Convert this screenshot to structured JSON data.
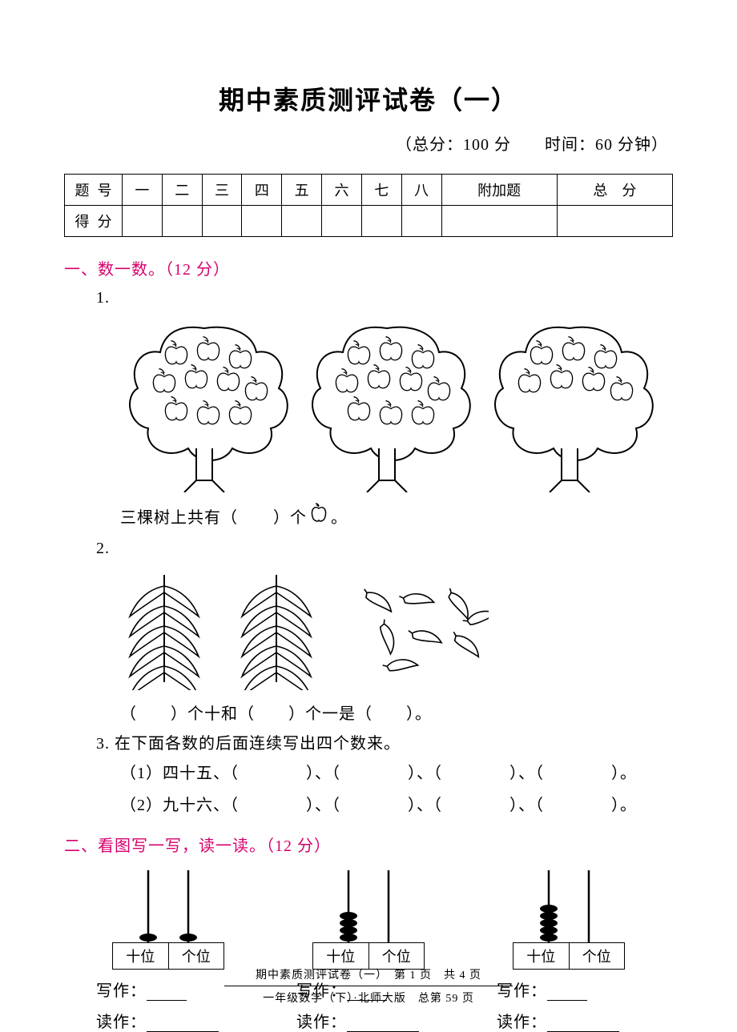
{
  "title": "期中素质测评试卷（一）",
  "subtitle_prefix": "（总分：",
  "total_score": "100",
  "score_unit": " 分",
  "time_label": "时间：",
  "time_value": "60",
  "time_unit": " 分钟）",
  "score_table": {
    "row1_label": "题号",
    "row2_label": "得分",
    "cols": [
      "一",
      "二",
      "三",
      "四",
      "五",
      "六",
      "七",
      "八",
      "附加题",
      "总　分"
    ]
  },
  "section1": {
    "heading": "一、数一数。（12 分）",
    "q1_num": "1.",
    "q1_text_a": "三棵树上共有（",
    "q1_text_b": "）个",
    "q1_text_c": "。",
    "trees": {
      "count": 3,
      "apples_per_tree": [
        10,
        10,
        7
      ],
      "tree_stroke": "#000000",
      "tree_fill": "#ffffff"
    },
    "q2_num": "2.",
    "q2_text": "（　　）个十和（　　）个一是（　　）。",
    "bunches": {
      "bunch_count": 2,
      "bananas_per_bunch": 10,
      "loose_count": 8,
      "stroke": "#000000"
    },
    "q3_num": "3.",
    "q3_text": "在下面各数的后面连续写出四个数来。",
    "q3_sub1": "（1）四十五、（　　　　）、（　　　　）、（　　　　）、（　　　　）。",
    "q3_sub2": "（2）九十六、（　　　　）、（　　　　）、（　　　　）、（　　　　）。"
  },
  "section2": {
    "heading": "二、看图写一写，读一读。（12 分）",
    "abacus": [
      {
        "tens": 1,
        "ones": 1
      },
      {
        "tens": 4,
        "ones": 0
      },
      {
        "tens": 5,
        "ones": 0,
        "ones_rod_only": true
      }
    ],
    "place_tens": "十位",
    "place_ones": "个位",
    "write_label": "写作：",
    "read_label": "读作：",
    "bead_color": "#000000",
    "rod_color": "#000000",
    "box_color": "#000000",
    "background": "#ffffff"
  },
  "footer": {
    "line1": "期中素质测评试卷（一）　第 1 页　共 4 页",
    "line2": "一年级数学（下）·北师大版　总第 59 页"
  },
  "colors": {
    "accent": "#d6006c",
    "text": "#000000",
    "background": "#ffffff"
  }
}
